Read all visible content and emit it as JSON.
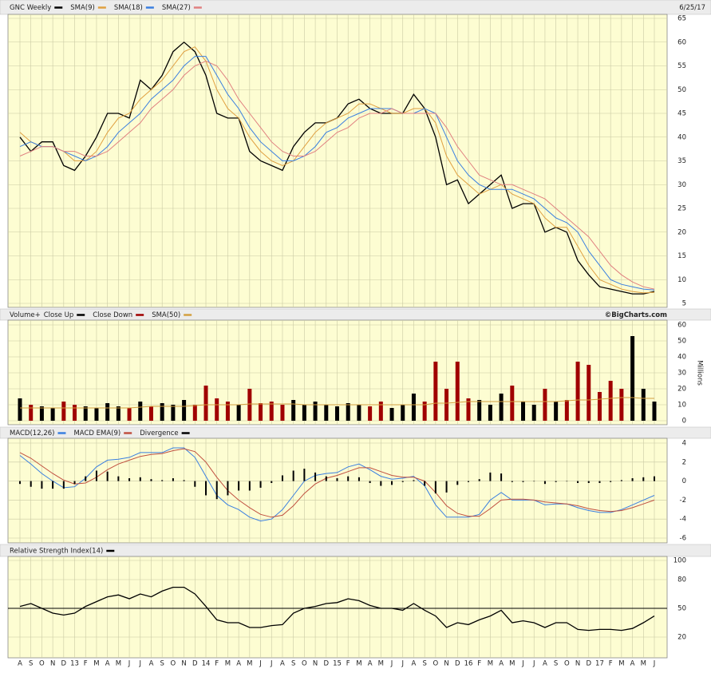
{
  "chart_data": [
    {
      "type": "line",
      "subtitle": "6/25/17",
      "ylim": [
        5,
        65
      ],
      "yticks": [
        5,
        10,
        15,
        20,
        25,
        30,
        35,
        40,
        45,
        50,
        55,
        60,
        65
      ],
      "grid": true,
      "series": [
        {
          "name": "GNC Weekly",
          "color": "#000000",
          "values": [
            40,
            37,
            39,
            39,
            34,
            33,
            36,
            40,
            45,
            45,
            44,
            52,
            50,
            53,
            58,
            60,
            58,
            53,
            45,
            44,
            44,
            37,
            35,
            34,
            33,
            38,
            41,
            43,
            43,
            44,
            47,
            48,
            46,
            45,
            45,
            45,
            49,
            46,
            40,
            30,
            31,
            26,
            28,
            30,
            32,
            25,
            26,
            26,
            20,
            21,
            20,
            14,
            11,
            8.5,
            8,
            7.5,
            7,
            7,
            7.5
          ]
        },
        {
          "name": "SMA(9)",
          "color": "#e0a040",
          "values": [
            41,
            39,
            38,
            38,
            37,
            35,
            35,
            37,
            41,
            44,
            45,
            48,
            50,
            52,
            55,
            58,
            59,
            56,
            50,
            46,
            44,
            40,
            37,
            35,
            34,
            35,
            38,
            41,
            43,
            44,
            45,
            47,
            47,
            46,
            45,
            45,
            46,
            46,
            43,
            36,
            32,
            30,
            28,
            29,
            30,
            28,
            27,
            26,
            23,
            21,
            21,
            17,
            13,
            10,
            9,
            8,
            7.5,
            7.2,
            7.3
          ]
        },
        {
          "name": "SMA(18)",
          "color": "#3a7fe0",
          "values": [
            38,
            39,
            38,
            38,
            37,
            36,
            35,
            36,
            38,
            41,
            43,
            45,
            48,
            50,
            52,
            55,
            57,
            57,
            53,
            49,
            46,
            42,
            39,
            37,
            35,
            35,
            36,
            38,
            41,
            42,
            44,
            45,
            46,
            46,
            46,
            45,
            45,
            46,
            45,
            40,
            35,
            32,
            30,
            29,
            29,
            29,
            28,
            27,
            25,
            23,
            22,
            20,
            16,
            13,
            10,
            9,
            8.5,
            8,
            7.8
          ]
        },
        {
          "name": "SMA(27)",
          "color": "#e08080",
          "values": [
            36,
            37,
            38,
            38,
            37,
            37,
            36,
            36,
            37,
            39,
            41,
            43,
            46,
            48,
            50,
            53,
            55,
            56,
            55,
            52,
            48,
            45,
            42,
            39,
            37,
            36,
            36,
            37,
            39,
            41,
            42,
            44,
            45,
            45,
            46,
            45,
            45,
            45,
            45,
            42,
            38,
            35,
            32,
            31,
            30,
            30,
            29,
            28,
            27,
            25,
            23,
            21,
            19,
            16,
            13,
            11,
            9.5,
            8.5,
            8
          ]
        }
      ]
    },
    {
      "type": "bar",
      "title": "Volume+",
      "source": "©BigCharts.com",
      "y_label": "Millions",
      "ylim": [
        0,
        60
      ],
      "yticks": [
        0,
        10,
        20,
        30,
        40,
        50,
        60
      ],
      "grid": true,
      "series": [
        {
          "name": "Close Up",
          "color": "#000000",
          "type": "bar",
          "values": [
            14,
            null,
            9,
            8,
            null,
            null,
            9,
            8,
            11,
            9,
            null,
            12,
            null,
            11,
            10,
            13,
            null,
            null,
            null,
            null,
            10,
            null,
            null,
            null,
            null,
            13,
            10,
            12,
            10,
            9,
            11,
            10,
            null,
            null,
            8,
            10,
            17,
            null,
            null,
            null,
            null,
            null,
            13,
            10,
            17,
            null,
            12,
            10,
            null,
            12,
            null,
            null,
            null,
            null,
            null,
            null,
            53,
            20,
            12
          ]
        },
        {
          "name": "Close Down",
          "color": "#a00000",
          "type": "bar",
          "values": [
            null,
            10,
            null,
            null,
            12,
            10,
            null,
            null,
            null,
            null,
            8,
            null,
            9,
            null,
            null,
            null,
            10,
            22,
            14,
            12,
            null,
            20,
            11,
            12,
            10,
            null,
            null,
            null,
            null,
            null,
            null,
            null,
            9,
            12,
            null,
            null,
            null,
            12,
            37,
            20,
            37,
            14,
            null,
            null,
            null,
            22,
            null,
            null,
            20,
            null,
            13,
            37,
            35,
            18,
            25,
            20,
            null,
            null,
            null
          ]
        },
        {
          "name": "SMA(50)",
          "color": "#d4a040",
          "values": [
            8,
            8,
            8,
            8,
            8,
            8,
            8,
            8,
            8,
            8,
            8,
            8.5,
            9,
            9,
            9,
            9,
            9.5,
            10,
            10,
            10,
            10,
            10.5,
            10.5,
            10.5,
            10.5,
            10.5,
            10,
            10,
            10,
            10,
            10,
            10,
            10,
            10,
            10,
            10,
            10,
            10,
            11,
            11,
            11.5,
            12,
            12,
            12,
            12,
            12,
            12,
            12,
            12,
            12,
            12.5,
            13,
            13,
            13.5,
            14,
            14.5,
            14.5,
            14,
            14
          ]
        }
      ]
    },
    {
      "type": "line",
      "ylim": [
        -6,
        4
      ],
      "yticks": [
        -6,
        -4,
        -2,
        0,
        2,
        4
      ],
      "grid": true,
      "series": [
        {
          "name": "MACD(12,26)",
          "color": "#3a7fe0",
          "values": [
            2.7,
            1.8,
            0.8,
            0,
            -0.7,
            -0.6,
            0.3,
            1.5,
            2.2,
            2.3,
            2.5,
            3,
            3,
            3,
            3.5,
            3.5,
            2.5,
            0.5,
            -1.5,
            -2.5,
            -3,
            -3.8,
            -4.2,
            -4,
            -3,
            -1.5,
            0,
            0.6,
            0.8,
            0.9,
            1.5,
            1.8,
            1.2,
            0.5,
            0.2,
            0.3,
            0.5,
            -0.5,
            -2.5,
            -3.8,
            -3.8,
            -3.8,
            -3.5,
            -2,
            -1.2,
            -2,
            -2,
            -2,
            -2.5,
            -2.4,
            -2.4,
            -2.8,
            -3.1,
            -3.3,
            -3.3,
            -3,
            -2.5,
            -2,
            -1.5
          ]
        },
        {
          "name": "MACD EMA(9)",
          "color": "#c05040",
          "values": [
            3,
            2.4,
            1.6,
            0.8,
            0.1,
            -0.3,
            -0.2,
            0.4,
            1.2,
            1.8,
            2.2,
            2.6,
            2.8,
            2.9,
            3.2,
            3.4,
            3.1,
            2,
            0.4,
            -1,
            -2,
            -2.8,
            -3.5,
            -3.8,
            -3.6,
            -2.6,
            -1.3,
            -0.3,
            0.3,
            0.6,
            1,
            1.4,
            1.4,
            1,
            0.6,
            0.4,
            0.4,
            0,
            -1.2,
            -2.6,
            -3.4,
            -3.7,
            -3.7,
            -2.9,
            -2,
            -1.9,
            -1.9,
            -2,
            -2.2,
            -2.3,
            -2.4,
            -2.6,
            -2.9,
            -3.1,
            -3.2,
            -3.1,
            -2.8,
            -2.4,
            -2
          ]
        },
        {
          "name": "Divergence",
          "color": "#000000",
          "type": "bar",
          "values": [
            -0.3,
            -0.6,
            -0.8,
            -0.8,
            -0.8,
            -0.3,
            0.5,
            1.1,
            1,
            0.5,
            0.3,
            0.4,
            0.2,
            0.1,
            0.3,
            0.1,
            -0.6,
            -1.5,
            -1.9,
            -1.5,
            -1,
            -1,
            -0.7,
            -0.2,
            0.6,
            1.1,
            1.3,
            0.9,
            0.5,
            0.3,
            0.5,
            0.4,
            -0.2,
            -0.5,
            -0.4,
            -0.1,
            0.1,
            -0.5,
            -1.3,
            -1.2,
            -0.4,
            -0.1,
            0.2,
            0.9,
            0.8,
            -0.1,
            -0.1,
            0,
            -0.3,
            -0.1,
            0,
            -0.2,
            -0.2,
            -0.2,
            -0.1,
            0.1,
            0.3,
            0.4,
            0.5
          ]
        }
      ]
    },
    {
      "type": "line",
      "categories": [
        "A",
        "S",
        "O",
        "N",
        "D",
        "13",
        "F",
        "M",
        "A",
        "M",
        "J",
        "J",
        "A",
        "S",
        "O",
        "N",
        "D",
        "14",
        "F",
        "M",
        "A",
        "M",
        "J",
        "J",
        "A",
        "S",
        "O",
        "N",
        "D",
        "15",
        "F",
        "M",
        "A",
        "M",
        "J",
        "J",
        "A",
        "S",
        "O",
        "N",
        "D",
        "16",
        "F",
        "M",
        "A",
        "M",
        "J",
        "J",
        "A",
        "S",
        "O",
        "N",
        "D",
        "17",
        "F",
        "M",
        "A",
        "M",
        "J"
      ],
      "ylim": [
        0,
        100
      ],
      "yticks": [
        20,
        50,
        80,
        100
      ],
      "grid": true,
      "reference_line": 50,
      "series": [
        {
          "name": "Relative Strength Index(14)",
          "color": "#000000",
          "values": [
            52,
            55,
            50,
            45,
            43,
            45,
            52,
            57,
            62,
            64,
            60,
            65,
            62,
            68,
            72,
            72,
            65,
            52,
            38,
            35,
            35,
            30,
            30,
            32,
            33,
            45,
            50,
            52,
            55,
            56,
            60,
            58,
            53,
            50,
            50,
            48,
            55,
            48,
            42,
            30,
            35,
            33,
            38,
            42,
            48,
            35,
            37,
            35,
            30,
            35,
            35,
            28,
            27,
            28,
            28,
            27,
            29,
            35,
            42
          ]
        }
      ]
    }
  ]
}
